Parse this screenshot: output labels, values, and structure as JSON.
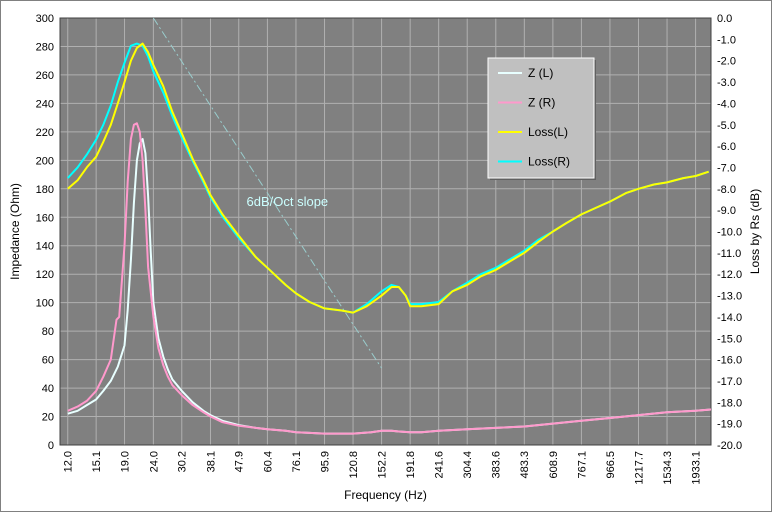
{
  "chart_data": {
    "type": "line",
    "xlabel": "Frequency (Hz)",
    "ylabel_left": "Impedance (Ohm)",
    "ylabel_right": "Loss by Rs (dB)",
    "x_scale": "log",
    "x_ticks": [
      "12.0",
      "15.1",
      "19.0",
      "24.0",
      "30.2",
      "38.1",
      "47.9",
      "60.4",
      "76.1",
      "95.9",
      "120.8",
      "152.2",
      "191.8",
      "241.6",
      "304.4",
      "383.6",
      "483.3",
      "608.9",
      "767.1",
      "966.5",
      "1217.7",
      "1534.3",
      "1933.1"
    ],
    "y_left_ticks": [
      "0",
      "20",
      "40",
      "60",
      "80",
      "100",
      "120",
      "140",
      "160",
      "180",
      "200",
      "220",
      "240",
      "260",
      "280",
      "300"
    ],
    "y_left_range": [
      0,
      300
    ],
    "y_right_ticks": [
      "0.0",
      "-1.0",
      "-2.0",
      "-3.0",
      "-4.0",
      "-5.0",
      "-6.0",
      "-7.0",
      "-8.0",
      "-9.0",
      "-10.0",
      "-11.0",
      "-12.0",
      "-13.0",
      "-14.0",
      "-15.0",
      "-16.0",
      "-17.0",
      "-18.0",
      "-19.0",
      "-20.0"
    ],
    "y_right_range": [
      -20,
      0
    ],
    "grid": true,
    "legend_position": "upper-middle-right",
    "annotation": "6dB/Oct slope",
    "slope_line": {
      "x": [
        24,
        152.2
      ],
      "y_ohm": [
        300,
        54
      ]
    },
    "series": [
      {
        "name": "Z (L)",
        "axis": "left",
        "color": "#e8ffff",
        "x": [
          12,
          13,
          14,
          15.1,
          16,
          17,
          18,
          19,
          19.5,
          20,
          20.5,
          21,
          21.5,
          22,
          22.5,
          23,
          23.5,
          24,
          25,
          26,
          27,
          28,
          30.2,
          33,
          36,
          38.1,
          42,
          47.9,
          55,
          60.4,
          70,
          76.1,
          85,
          95.9,
          110,
          120.8,
          140,
          152.2,
          165,
          175,
          191.8,
          210,
          241.6,
          304.4,
          383.6,
          483.3,
          608.9,
          767.1,
          966.5,
          1217.7,
          1534.3,
          1933.1,
          2200
        ],
        "y": [
          22,
          24,
          28,
          32,
          38,
          45,
          55,
          70,
          95,
          130,
          170,
          200,
          212,
          215,
          205,
          175,
          135,
          100,
          75,
          62,
          53,
          46,
          38,
          30,
          24,
          21,
          17,
          14,
          12,
          11,
          10,
          9,
          8.5,
          8,
          8,
          8,
          9,
          10,
          10,
          9.5,
          9,
          9,
          10,
          11,
          12,
          13,
          15,
          17,
          19,
          21,
          23,
          24,
          25
        ]
      },
      {
        "name": "Z (R)",
        "axis": "left",
        "color": "#ff99cc",
        "x": [
          12,
          13,
          14,
          15.1,
          16,
          17,
          17.8,
          18.2,
          19,
          19.5,
          20,
          20.5,
          21,
          21.5,
          22,
          22.5,
          23,
          24,
          25,
          26,
          27,
          28,
          30.2,
          33,
          36,
          38.1,
          42,
          47.9,
          55,
          60.4,
          70,
          76.1,
          85,
          95.9,
          110,
          120.8,
          140,
          152.2,
          165,
          175,
          191.8,
          210,
          241.6,
          304.4,
          383.6,
          483.3,
          608.9,
          767.1,
          966.5,
          1217.7,
          1534.3,
          1933.1,
          2200
        ],
        "y": [
          24,
          27,
          31,
          38,
          48,
          60,
          88,
          90,
          140,
          185,
          215,
          225,
          226,
          220,
          200,
          165,
          125,
          90,
          68,
          56,
          48,
          42,
          35,
          28,
          23,
          20,
          16,
          13.5,
          12,
          11,
          10,
          9,
          8.5,
          8,
          8,
          8,
          9,
          10,
          10,
          9.5,
          9,
          9,
          10,
          11,
          12,
          13,
          15,
          17,
          19,
          21,
          23,
          24,
          25
        ]
      },
      {
        "name": "Loss(L)",
        "axis": "right",
        "color": "#ffff00",
        "x": [
          12,
          13,
          14,
          15.1,
          16,
          17,
          18,
          19,
          20,
          21,
          22,
          23,
          24,
          26,
          28,
          30.2,
          33,
          36,
          38.1,
          42,
          47.9,
          55,
          60.4,
          70,
          76.1,
          85,
          95.9,
          110,
          120.8,
          135,
          152.2,
          165,
          175,
          185,
          191.8,
          210,
          241.6,
          270,
          304.4,
          340,
          383.6,
          430,
          483.3,
          540,
          608.9,
          680,
          767.1,
          860,
          966.5,
          1100,
          1217.7,
          1380,
          1534.3,
          1750,
          1933.1,
          2150
        ],
        "y": [
          -8.0,
          -7.6,
          -7.0,
          -6.5,
          -5.8,
          -5.0,
          -4.0,
          -3.0,
          -2.0,
          -1.4,
          -1.2,
          -1.6,
          -2.2,
          -3.2,
          -4.4,
          -5.4,
          -6.6,
          -7.6,
          -8.3,
          -9.2,
          -10.2,
          -11.2,
          -11.7,
          -12.5,
          -12.9,
          -13.3,
          -13.6,
          -13.7,
          -13.8,
          -13.5,
          -13.0,
          -12.6,
          -12.6,
          -13.0,
          -13.5,
          -13.5,
          -13.4,
          -12.8,
          -12.5,
          -12.1,
          -11.8,
          -11.4,
          -11.0,
          -10.5,
          -10.0,
          -9.6,
          -9.2,
          -8.9,
          -8.6,
          -8.2,
          -8.0,
          -7.8,
          -7.7,
          -7.5,
          -7.4,
          -7.2
        ]
      },
      {
        "name": "Loss(R)",
        "axis": "right",
        "color": "#00ffff",
        "x": [
          12,
          13,
          14,
          15.1,
          16,
          17,
          18,
          19,
          20,
          21,
          22,
          23,
          24,
          26,
          28,
          30.2,
          33,
          36,
          38.1,
          42,
          47.9,
          55,
          60.4,
          70,
          76.1,
          85,
          95.9,
          110,
          120.8,
          135,
          152.2,
          165,
          175,
          185,
          191.8,
          210,
          241.6,
          270,
          304.4,
          340,
          383.6,
          430,
          483.3,
          540,
          608.9,
          680,
          767.1,
          860,
          966.5,
          1100,
          1217.7,
          1380,
          1534.3,
          1750,
          1933.1,
          2150
        ],
        "y": [
          -7.5,
          -7.0,
          -6.4,
          -5.7,
          -5.0,
          -4.1,
          -3.0,
          -2.1,
          -1.3,
          -1.2,
          -1.3,
          -1.8,
          -2.5,
          -3.5,
          -4.6,
          -5.6,
          -6.7,
          -7.7,
          -8.4,
          -9.3,
          -10.3,
          -11.2,
          -11.7,
          -12.5,
          -12.9,
          -13.3,
          -13.6,
          -13.7,
          -13.8,
          -13.4,
          -12.8,
          -12.5,
          -12.6,
          -13.0,
          -13.4,
          -13.4,
          -13.3,
          -12.8,
          -12.4,
          -12.0,
          -11.7,
          -11.3,
          -10.9,
          -10.4,
          -10.0,
          -9.6,
          -9.2,
          -8.9,
          -8.6,
          -8.2,
          -8.0,
          -7.8,
          -7.7,
          -7.5,
          -7.4,
          -7.2
        ]
      }
    ]
  },
  "colors": {
    "plot_background": "#808080",
    "frame_background": "#ffffff",
    "grid": "#b0b0b0",
    "legend_background": "#c0c0c0",
    "annotation_text": "#ccffff",
    "slope_line": "#99cccc"
  }
}
